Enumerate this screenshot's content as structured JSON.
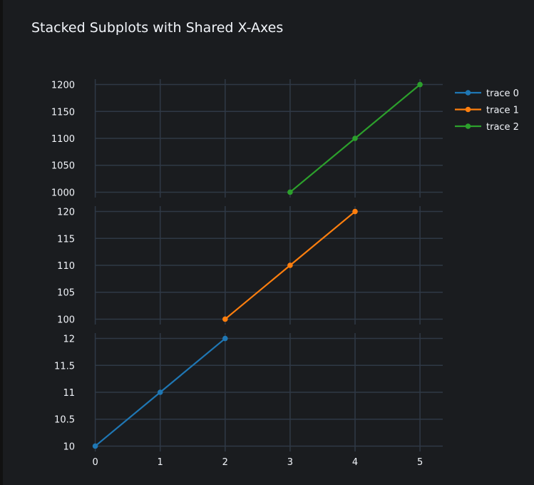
{
  "chart_data": {
    "type": "line",
    "title": "Stacked Subplots with Shared X-Axes",
    "shared_x": true,
    "xticks": [
      0,
      1,
      2,
      3,
      4,
      5
    ],
    "xlim": [
      0,
      5.35
    ],
    "grid": true,
    "legend_position": "top-right",
    "colors": {
      "background": "#1a1c1f",
      "grid": "#2f3946",
      "text": "#f2f5fa"
    },
    "subplots": [
      {
        "row": 1,
        "yticks": [
          1000,
          1050,
          1100,
          1150,
          1200
        ],
        "ylim": [
          990,
          1210
        ],
        "series": [
          {
            "name": "trace 2",
            "color": "#2ca02c",
            "x": [
              3,
              4,
              5
            ],
            "y": [
              1000,
              1100,
              1200
            ]
          }
        ]
      },
      {
        "row": 2,
        "yticks": [
          100,
          105,
          110,
          115,
          120
        ],
        "ylim": [
          99,
          121
        ],
        "series": [
          {
            "name": "trace 1",
            "color": "#ff7f0e",
            "x": [
              2,
              3,
              4
            ],
            "y": [
              100,
              110,
              120
            ]
          }
        ]
      },
      {
        "row": 3,
        "yticks": [
          10,
          10.5,
          11,
          11.5,
          12
        ],
        "ylim": [
          9.9,
          12.1
        ],
        "series": [
          {
            "name": "trace 0",
            "color": "#1f77b4",
            "x": [
              0,
              1,
              2
            ],
            "y": [
              10,
              11,
              12
            ]
          }
        ]
      }
    ],
    "legend": [
      {
        "name": "trace 0",
        "color": "#1f77b4"
      },
      {
        "name": "trace 1",
        "color": "#ff7f0e"
      },
      {
        "name": "trace 2",
        "color": "#2ca02c"
      }
    ]
  }
}
